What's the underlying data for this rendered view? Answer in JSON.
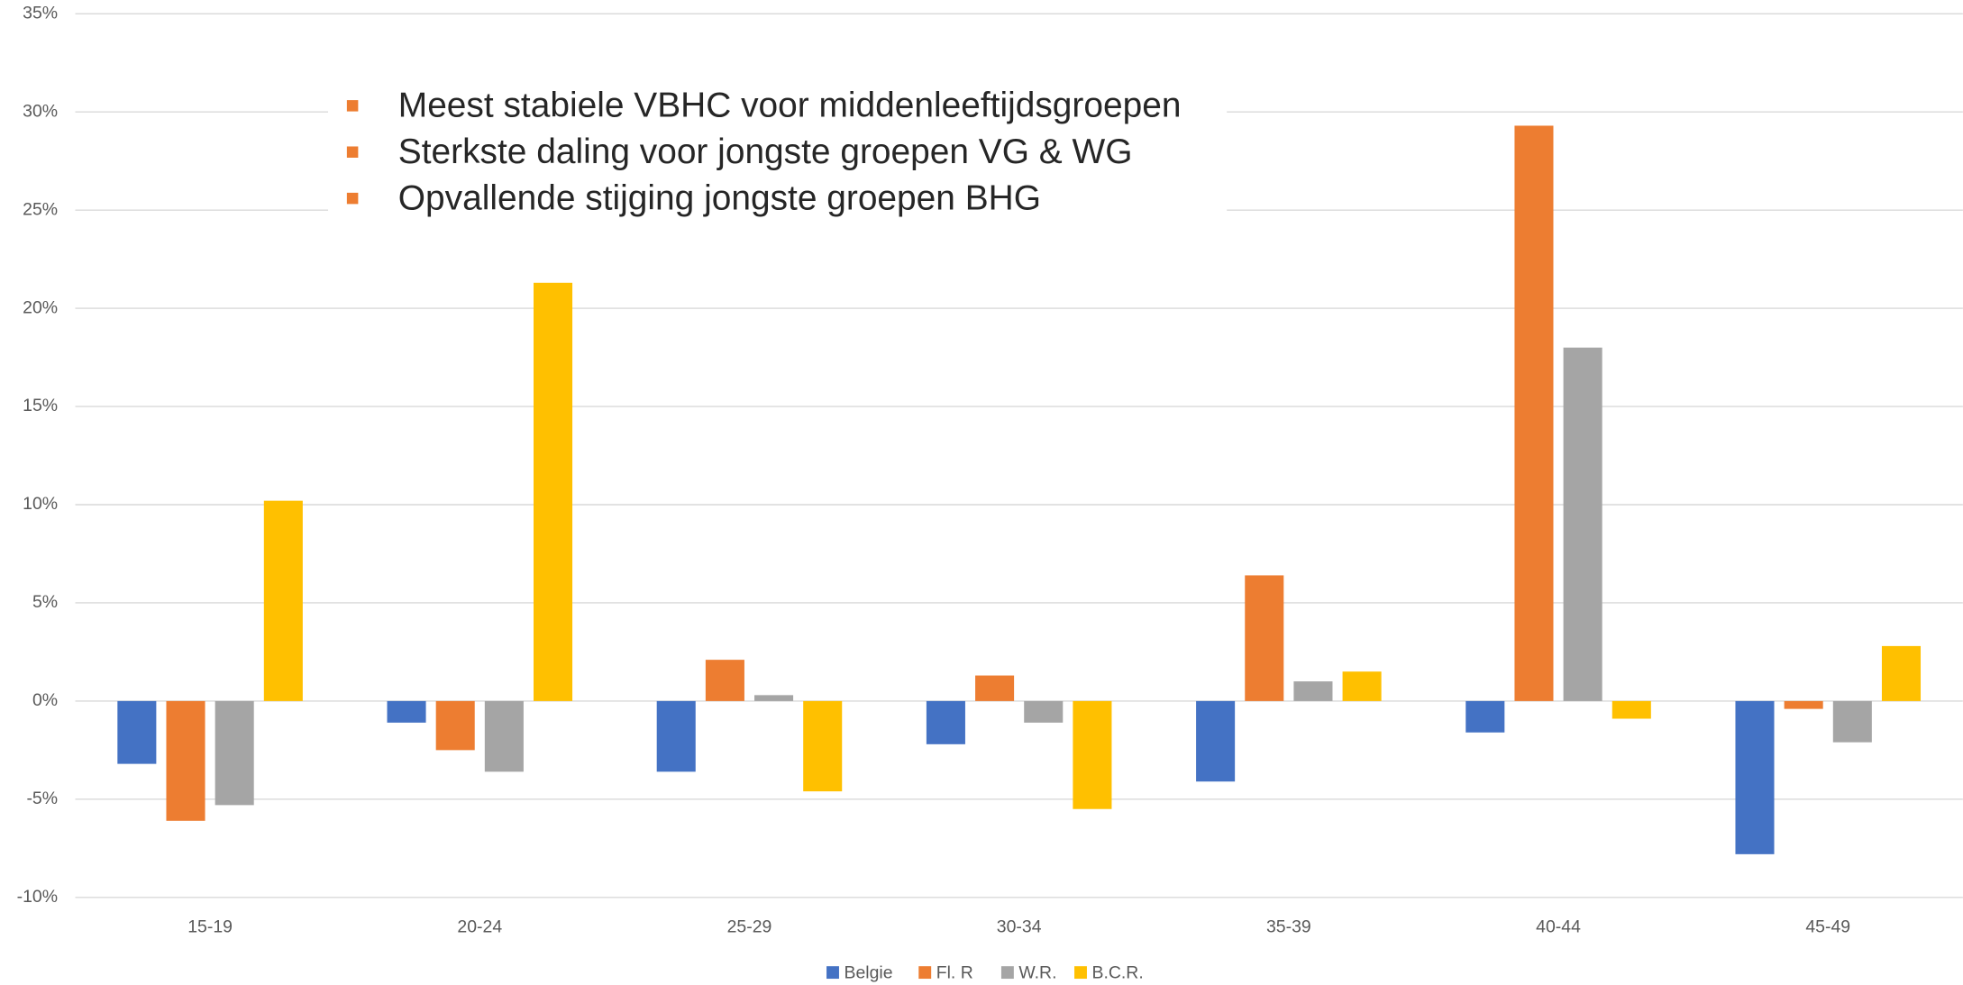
{
  "chart_data": {
    "type": "bar",
    "categories": [
      "15-19",
      "20-24",
      "25-29",
      "30-34",
      "35-39",
      "40-44",
      "45-49"
    ],
    "series": [
      {
        "name": "Belgie",
        "color": "#4472c4",
        "values": [
          -3.2,
          -1.1,
          -3.6,
          -2.2,
          -4.1,
          -1.6,
          -7.8
        ]
      },
      {
        "name": "Fl. R",
        "color": "#ed7d31",
        "values": [
          -6.1,
          -2.5,
          2.1,
          1.3,
          6.4,
          29.3,
          -0.4
        ]
      },
      {
        "name": "W.R.",
        "color": "#a5a5a5",
        "values": [
          -5.3,
          -3.6,
          0.3,
          -1.1,
          1.0,
          18.0,
          -2.1
        ]
      },
      {
        "name": "B.C.R.",
        "color": "#ffc000",
        "values": [
          10.2,
          21.3,
          -4.6,
          -5.5,
          1.5,
          -0.9,
          2.8
        ]
      }
    ],
    "ylim": [
      -10,
      35
    ],
    "yticks": [
      {
        "value": -10,
        "label": "-10%"
      },
      {
        "value": -5,
        "label": "-5%"
      },
      {
        "value": 0,
        "label": "0%"
      },
      {
        "value": 5,
        "label": "5%"
      },
      {
        "value": 10,
        "label": "10%"
      },
      {
        "value": 15,
        "label": "15%"
      },
      {
        "value": 20,
        "label": "20%"
      },
      {
        "value": 25,
        "label": "25%"
      },
      {
        "value": 30,
        "label": "30%"
      },
      {
        "value": 35,
        "label": "35%"
      }
    ],
    "grid": true,
    "legend": "bottom",
    "annotations": [
      "Meest stabiele VBHC voor middenleeftijdsgroepen",
      "Sterkste daling voor jongste groepen VG & WG",
      "Opvallende stijging jongste groepen BHG"
    ]
  }
}
